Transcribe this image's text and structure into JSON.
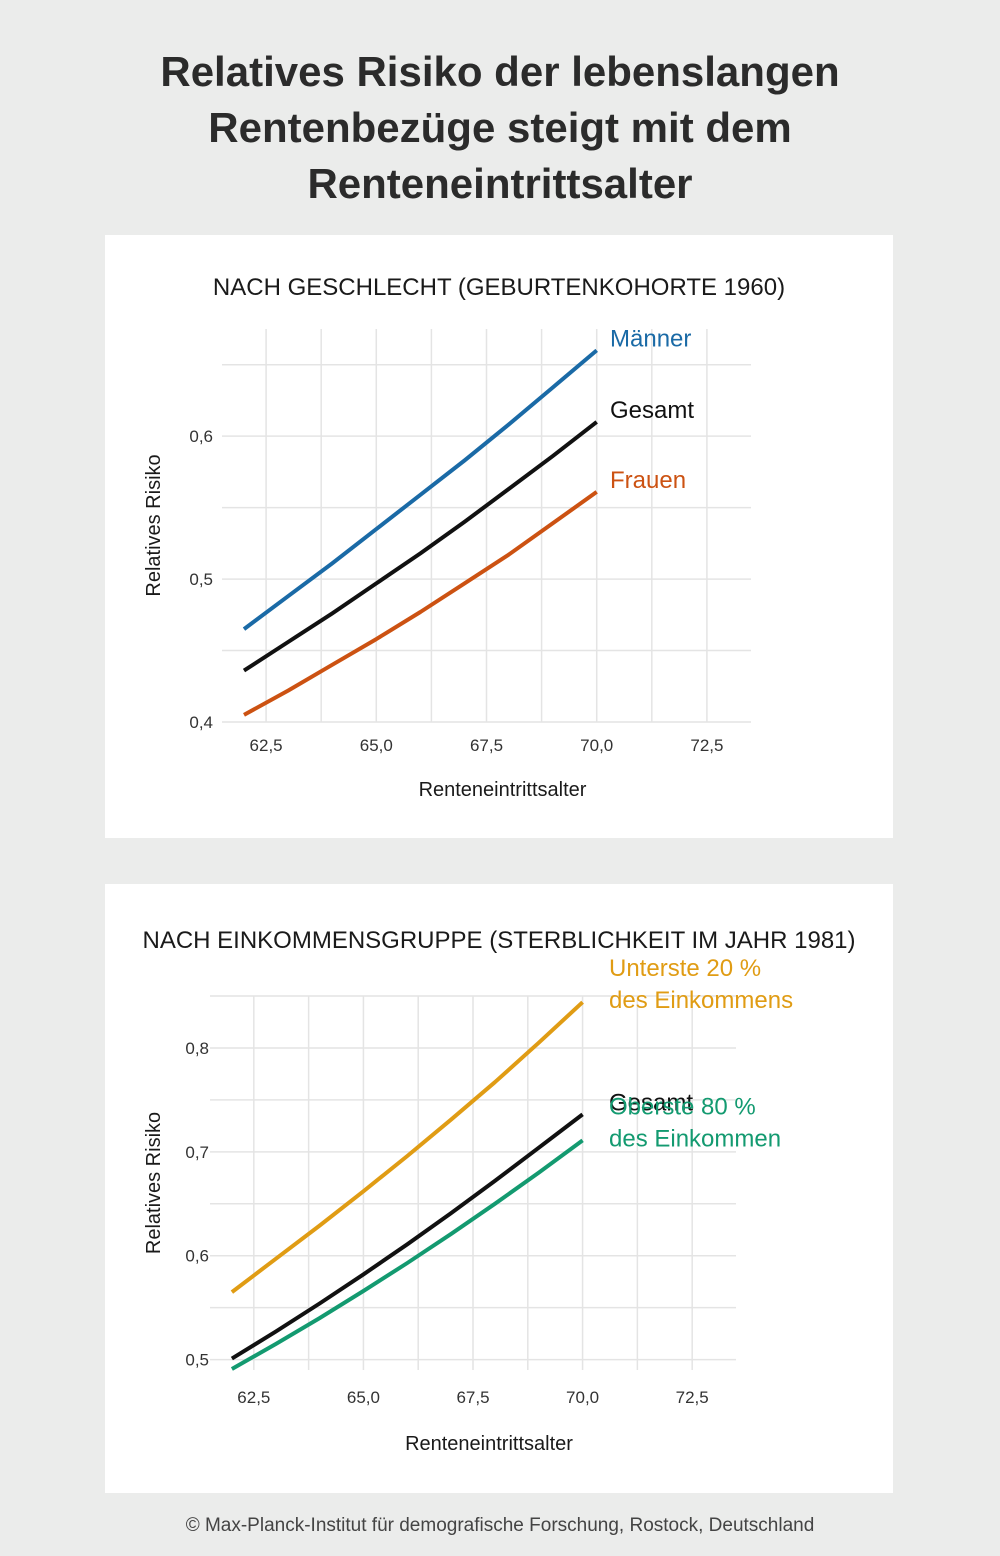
{
  "title": {
    "lines": [
      "Relatives Risiko der lebenslangen",
      "Rentenbezüge steigt mit dem",
      "Renteneintrittsalter"
    ]
  },
  "footer": "© Max-Planck-Institut für demografische Forschung, Rostock, Deutschland",
  "chart_data": [
    {
      "type": "line",
      "title": "NACH GESCHLECHT (GEBURTENKOHORTE 1960)",
      "xlabel": "Renteneintrittsalter",
      "ylabel": "Relatives Risiko",
      "xlim": [
        61.5,
        73.5
      ],
      "ylim": [
        0.4,
        0.675
      ],
      "xticks": [
        62.5,
        65.0,
        67.5,
        70.0,
        72.5
      ],
      "xtick_labels": [
        "62,5",
        "65,0",
        "67,5",
        "70,0",
        "72,5"
      ],
      "yticks": [
        0.4,
        0.5,
        0.6
      ],
      "ytick_labels": [
        "0,4",
        "0,5",
        "0,6"
      ],
      "grid": true,
      "x": [
        62,
        63,
        64,
        65,
        66,
        67,
        68,
        69,
        70
      ],
      "series": [
        {
          "name": "Männer",
          "color": "#1a6aa6",
          "label_lines": [
            "Männer"
          ],
          "values": [
            0.465,
            0.488,
            0.511,
            0.535,
            0.559,
            0.583,
            0.608,
            0.634,
            0.66
          ]
        },
        {
          "name": "Gesamt",
          "color": "#111111",
          "label_lines": [
            "Gesamt"
          ],
          "values": [
            0.436,
            0.456,
            0.476,
            0.497,
            0.518,
            0.54,
            0.563,
            0.586,
            0.61
          ]
        },
        {
          "name": "Frauen",
          "color": "#cc5212",
          "label_lines": [
            "Frauen"
          ],
          "values": [
            0.405,
            0.422,
            0.44,
            0.458,
            0.477,
            0.497,
            0.517,
            0.539,
            0.561
          ]
        }
      ]
    },
    {
      "type": "line",
      "title": "NACH EINKOMMENSGRUPPE (STERBLICHKEIT IM JAHR 1981)",
      "xlabel": "Renteneintrittsalter",
      "ylabel": "Relatives Risiko",
      "xlim": [
        61.5,
        73.5
      ],
      "ylim": [
        0.49,
        0.85
      ],
      "xticks": [
        62.5,
        65.0,
        67.5,
        70.0,
        72.5
      ],
      "xtick_labels": [
        "62,5",
        "65,0",
        "67,5",
        "70,0",
        "72,5"
      ],
      "yticks": [
        0.5,
        0.6,
        0.7,
        0.8
      ],
      "ytick_labels": [
        "0,5",
        "0,6",
        "0,7",
        "0,8"
      ],
      "grid": true,
      "x": [
        62,
        63,
        64,
        65,
        66,
        67,
        68,
        69,
        70
      ],
      "series": [
        {
          "name": "Unterste 20 % des Einkommens",
          "color": "#e09c14",
          "label_lines": [
            "Unterste 20 %",
            "des Einkommens"
          ],
          "values": [
            0.565,
            0.597,
            0.629,
            0.662,
            0.696,
            0.731,
            0.767,
            0.805,
            0.844
          ]
        },
        {
          "name": "Gesamt",
          "color": "#111111",
          "label_lines": [
            "Gesamt"
          ],
          "values": [
            0.501,
            0.527,
            0.554,
            0.582,
            0.611,
            0.641,
            0.672,
            0.704,
            0.736
          ]
        },
        {
          "name": "Oberste 80 % des Einkommen",
          "color": "#139a70",
          "label_lines": [
            "Oberste 80 %",
            "des Einkommen"
          ],
          "values": [
            0.491,
            0.515,
            0.54,
            0.566,
            0.593,
            0.621,
            0.65,
            0.68,
            0.711
          ]
        }
      ]
    }
  ]
}
